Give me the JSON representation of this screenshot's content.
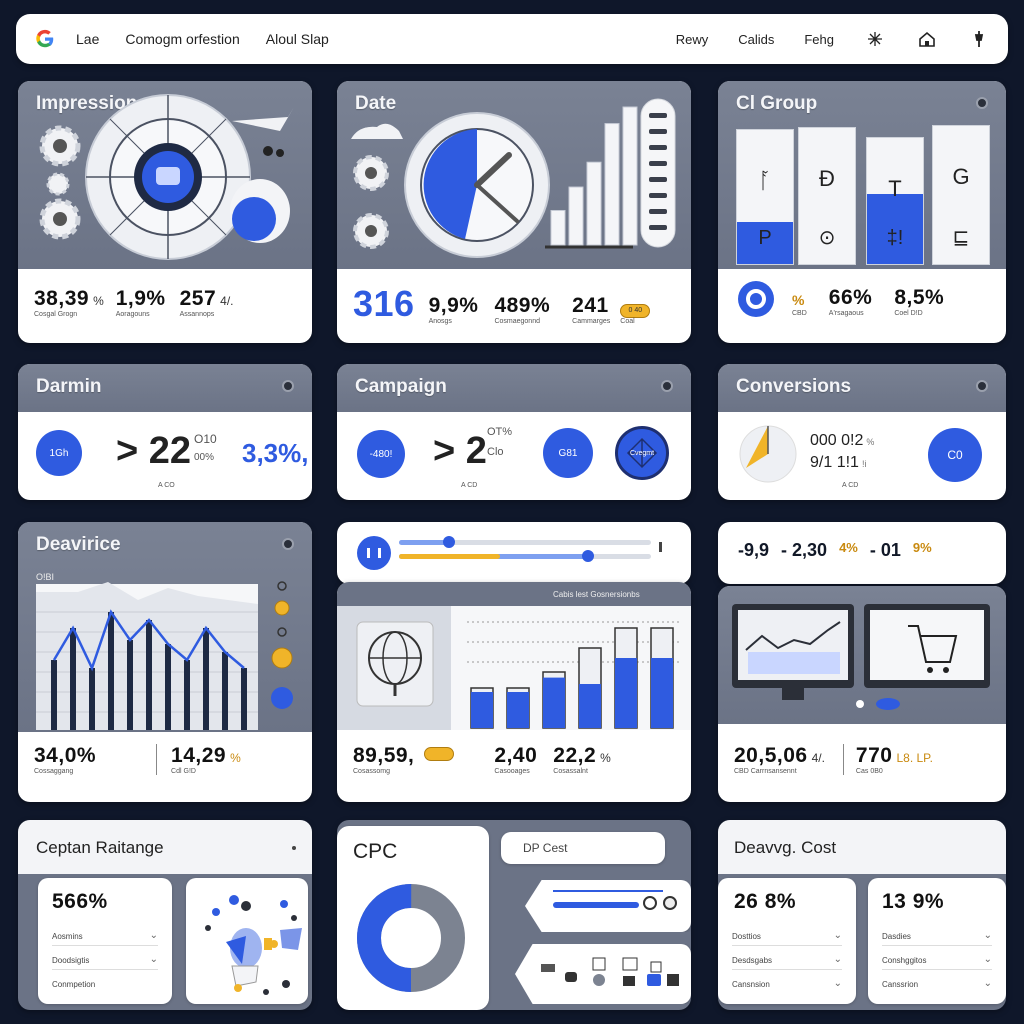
{
  "topbar": {
    "nav": [
      "Lae",
      "Comogm orfestion",
      "Aloul Slap"
    ],
    "right_nav": [
      "Rewy",
      "Calids",
      "Fehg"
    ],
    "icons": [
      "google-logo",
      "sparkle-icon",
      "home-icon",
      "pin-icon"
    ]
  },
  "colors": {
    "accent": "#2f5be0",
    "gold": "#f0b429",
    "header": "#727a8c",
    "background": "#0f172a"
  },
  "cards": {
    "impressions": {
      "title": "Impressions",
      "stats": [
        {
          "value": "38,39",
          "unit": "%",
          "label": "Cosgal Grogn"
        },
        {
          "value": "1,9%",
          "label": "Aoragouns"
        },
        {
          "value": "257",
          "unit": "4/.",
          "label": "Assannops"
        }
      ]
    },
    "date": {
      "title": "Date",
      "stats": [
        {
          "value": "316"
        },
        {
          "value": "9,9%",
          "label": "Anosgs"
        },
        {
          "value": "489%",
          "label": "Cosmaegonnd"
        },
        {
          "value": "241",
          "label": "Cammarges"
        },
        {
          "value": "0 40",
          "label": "Coal"
        }
      ],
      "bar_chart": {
        "values": [
          25,
          42,
          60,
          88,
          100
        ]
      }
    },
    "ci_group": {
      "title": "Cl Group",
      "stats": [
        {
          "value": "%",
          "label": "CBD"
        },
        {
          "value": "66%",
          "label": "A'rsagaous"
        },
        {
          "value": "8,5%",
          "label": "Coel D!D"
        }
      ],
      "columns": [
        {
          "top": "ᚪ",
          "bottom": "P"
        },
        {
          "top": "Ð",
          "bottom": "⊙"
        },
        {
          "top": "T",
          "bottom": "‡!"
        },
        {
          "top": "G",
          "bottom": "⊑"
        }
      ]
    },
    "darmin": {
      "title": "Darmin",
      "circle_label": "1Gh",
      "value": "> 22",
      "aside_top": "O10",
      "aside_bottom": "00%",
      "pct": "3,3%,",
      "caption": "A CO"
    },
    "campaign": {
      "title": "Campaign",
      "circle_left": "-480!",
      "value": "> 2",
      "aside_top": "OT%",
      "aside_bottom": "Clo",
      "caption": "A CD",
      "circle_mid": "G81",
      "circle_right": "Cvegmt"
    },
    "conversions": {
      "title": "Conversions",
      "line1": "000 0!2",
      "line1_suffix": "%",
      "line2": "9/1 1!1",
      "line2_suffix": "!i",
      "caption": "A CD",
      "circle": "C0"
    },
    "devirice": {
      "title": "Deavirice",
      "axis_label": "O!BI",
      "stats": [
        {
          "value": "34,0%",
          "label": "Cossaggang"
        },
        {
          "value": "14,29",
          "unit": "%",
          "label": "Cdl G!D"
        }
      ],
      "series": [
        {
          "name": "",
          "values": [
            30,
            38,
            28,
            42,
            35,
            40,
            34,
            30,
            38,
            32,
            28
          ]
        }
      ]
    },
    "slider": {
      "sliders": [
        {
          "value": 0.2
        },
        {
          "value": 0.75
        }
      ]
    },
    "campaign_bars": {
      "caption": "Cabis lest Gosnersionbs",
      "stats": [
        {
          "value": "89,59,",
          "label": "Cosassomg"
        },
        {
          "value": "2,40",
          "label": "Casooages"
        },
        {
          "value": "22,2",
          "unit": "%",
          "label": "Cosassalnt"
        }
      ],
      "bars": [
        {
          "total": 20,
          "fill": 0.9
        },
        {
          "total": 20,
          "fill": 0.9
        },
        {
          "total": 28,
          "fill": 0.9
        },
        {
          "total": 40,
          "fill": 0.55
        },
        {
          "total": 50,
          "fill": 0.7
        },
        {
          "total": 50,
          "fill": 0.7
        }
      ]
    },
    "summary_row": {
      "values": [
        "-9,9",
        "- 2,30",
        "4%",
        "- 01",
        "9%"
      ]
    },
    "monitors": {
      "stats": [
        {
          "value": "20,5,06",
          "unit": "4/.",
          "label": "CBD Carrnsansennt"
        },
        {
          "value": "770",
          "unit": "L8. LP.",
          "label": "Cas 0B0"
        }
      ]
    },
    "captan": {
      "title": "Ceptan Raitange",
      "stat": "566%",
      "rows": [
        "Aosmins",
        "Doodsigtis",
        "Conmpetion"
      ]
    },
    "cpc": {
      "title": "CPC",
      "pill": "DP Cest",
      "donut": {
        "blue": 0.5
      }
    },
    "devavg": {
      "title": "Deavvg. Cost",
      "left": {
        "stat": "26 8%",
        "rows": [
          "Dosttios",
          "Desdsgabs",
          "Cansnsion"
        ]
      },
      "right": {
        "stat": "13 9%",
        "rows": [
          "Dasdies",
          "Conshggitos",
          "Canssrion"
        ]
      }
    }
  }
}
